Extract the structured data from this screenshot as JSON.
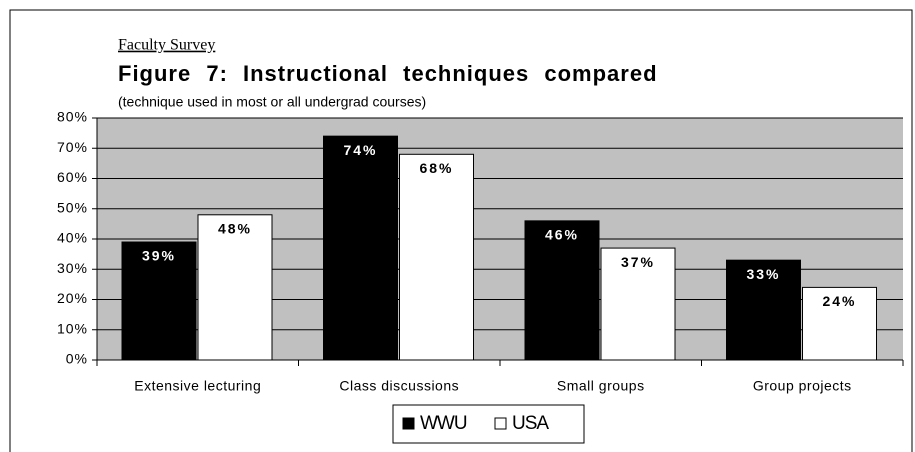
{
  "chart_data": {
    "type": "bar",
    "kicker": "Faculty Survey",
    "title": "Figure 7: Instructional techniques compared",
    "subtitle": "(technique used in most or all undergrad courses)",
    "categories": [
      "Extensive lecturing",
      "Class discussions",
      "Small groups",
      "Group projects"
    ],
    "series": [
      {
        "name": "WWU",
        "color": "#000000",
        "values": [
          39,
          74,
          46,
          33
        ],
        "value_labels": [
          "39%",
          "74%",
          "46%",
          "33%"
        ]
      },
      {
        "name": "USA",
        "color": "#ffffff",
        "values": [
          48,
          68,
          37,
          24
        ],
        "value_labels": [
          "48%",
          "68%",
          "37%",
          "24%"
        ]
      }
    ],
    "ylim": [
      0,
      80
    ],
    "yticks": [
      {
        "value": 0,
        "label": "0%"
      },
      {
        "value": 10,
        "label": "10%"
      },
      {
        "value": 20,
        "label": "20%"
      },
      {
        "value": 30,
        "label": "30%"
      },
      {
        "value": 40,
        "label": "40%"
      },
      {
        "value": 50,
        "label": "50%"
      },
      {
        "value": 60,
        "label": "60%"
      },
      {
        "value": 70,
        "label": "70%"
      },
      {
        "value": 80,
        "label": "80%"
      }
    ],
    "grid": true,
    "legend": "bottom"
  }
}
